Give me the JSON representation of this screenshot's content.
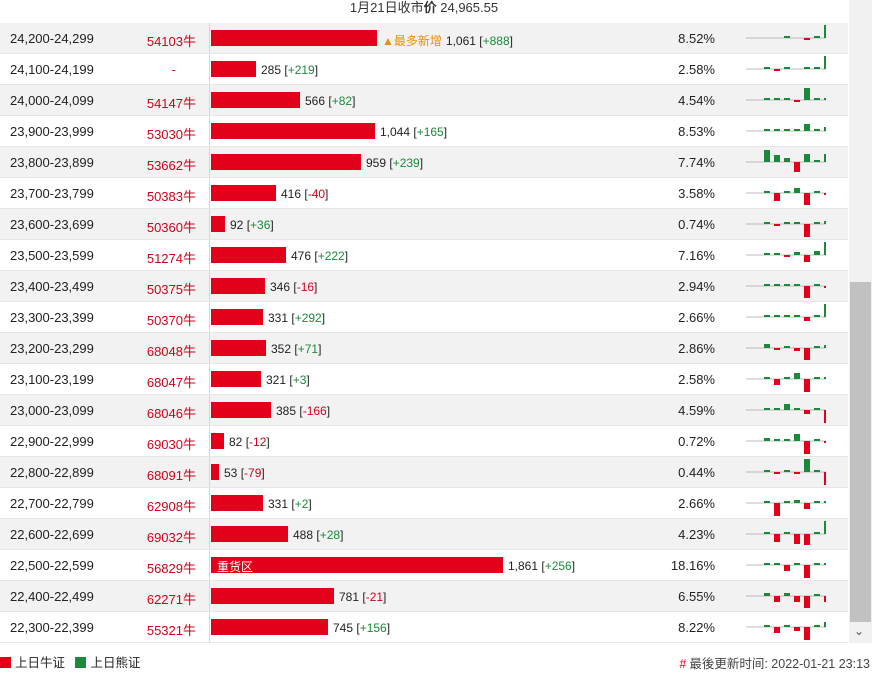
{
  "header": {
    "prefix": "1月21日收市",
    "label": "价",
    "price": "24,965.55"
  },
  "colors": {
    "bull": "#e2001a",
    "bear": "#1a8a3a",
    "accent": "#e8900c"
  },
  "columns": [
    "price_range",
    "code",
    "volume",
    "change",
    "percent",
    "trend"
  ],
  "scale_max": 1861,
  "rows": [
    {
      "range": "24,200-24,299",
      "code": "54103牛",
      "value": 1061,
      "value_text": "1,061",
      "change": "+888",
      "tag": "▲最多新增",
      "pct": "8.52%",
      "trend": [
        0,
        0,
        0,
        0.05,
        0,
        -0.05,
        0.15,
        0.95
      ]
    },
    {
      "range": "24,100-24,199",
      "code": "-",
      "value": 285,
      "value_text": "285",
      "change": "+219",
      "pct": "2.58%",
      "trend": [
        0,
        0.1,
        -0.05,
        0.05,
        0,
        0.1,
        0.15,
        0.95
      ]
    },
    {
      "range": "24,000-24,099",
      "code": "54147牛",
      "value": 566,
      "value_text": "566",
      "change": "+82",
      "pct": "4.54%",
      "trend": [
        0,
        0.05,
        0.05,
        0.05,
        -0.1,
        0.85,
        0.1,
        0.05
      ]
    },
    {
      "range": "23,900-23,999",
      "code": "53030牛",
      "value": 1044,
      "value_text": "1,044",
      "change": "+165",
      "pct": "8.53%",
      "trend": [
        0,
        0.1,
        0.05,
        0.05,
        0.1,
        0.5,
        0.1,
        0.3
      ]
    },
    {
      "range": "23,800-23,899",
      "code": "53662牛",
      "value": 959,
      "value_text": "959",
      "change": "+239",
      "pct": "7.74%",
      "trend": [
        0,
        0.85,
        0.5,
        0.3,
        -0.7,
        0.55,
        0.1,
        0.6
      ]
    },
    {
      "range": "23,700-23,799",
      "code": "50383牛",
      "value": 416,
      "value_text": "416",
      "change": "-40",
      "pct": "3.58%",
      "trend": [
        0,
        0.15,
        -0.55,
        0.05,
        0.35,
        -0.85,
        0.05,
        -0.1
      ]
    },
    {
      "range": "23,600-23,699",
      "code": "50360牛",
      "value": 92,
      "value_text": "92",
      "change": "+36",
      "pct": "0.74%",
      "trend": [
        0,
        0.1,
        -0.05,
        0.05,
        0.1,
        -0.9,
        0.05,
        0.2
      ]
    },
    {
      "range": "23,500-23,599",
      "code": "51274牛",
      "value": 476,
      "value_text": "476",
      "change": "+222",
      "pct": "7.16%",
      "trend": [
        0,
        0.1,
        0.1,
        -0.05,
        0.2,
        -0.5,
        0.3,
        0.9
      ]
    },
    {
      "range": "23,400-23,499",
      "code": "50375牛",
      "value": 346,
      "value_text": "346",
      "change": "-16",
      "pct": "2.94%",
      "trend": [
        0,
        0.05,
        0.1,
        0.05,
        0.1,
        -0.85,
        0.05,
        -0.1
      ]
    },
    {
      "range": "23,300-23,399",
      "code": "50370牛",
      "value": 331,
      "value_text": "331",
      "change": "+292",
      "pct": "2.66%",
      "trend": [
        0,
        0.05,
        0.1,
        0.05,
        0.1,
        -0.3,
        0.1,
        0.95
      ]
    },
    {
      "range": "23,200-23,299",
      "code": "68048牛",
      "value": 352,
      "value_text": "352",
      "change": "+71",
      "pct": "2.86%",
      "trend": [
        0,
        0.3,
        -0.05,
        0.1,
        -0.2,
        -0.85,
        0.05,
        0.2
      ]
    },
    {
      "range": "23,100-23,199",
      "code": "68047牛",
      "value": 321,
      "value_text": "321",
      "change": "+3",
      "pct": "2.58%",
      "trend": [
        0,
        0.05,
        -0.45,
        0.05,
        0.4,
        -0.9,
        0.1,
        0.05
      ]
    },
    {
      "range": "23,000-23,099",
      "code": "68046牛",
      "value": 385,
      "value_text": "385",
      "change": "-166",
      "pct": "4.59%",
      "trend": [
        0,
        0.05,
        0.05,
        0.4,
        0.1,
        -0.3,
        0.05,
        -0.95
      ]
    },
    {
      "range": "22,900-22,999",
      "code": "69030牛",
      "value": 82,
      "value_text": "82",
      "change": "-12",
      "pct": "0.72%",
      "trend": [
        0,
        0.2,
        0.05,
        0.1,
        0.5,
        -0.9,
        0.05,
        -0.1
      ]
    },
    {
      "range": "22,800-22,899",
      "code": "68091牛",
      "value": 53,
      "value_text": "53",
      "change": "-79",
      "pct": "0.44%",
      "trend": [
        0,
        0.05,
        -0.05,
        0.05,
        -0.05,
        0.95,
        0.05,
        -0.95
      ]
    },
    {
      "range": "22,700-22,799",
      "code": "62908牛",
      "value": 331,
      "value_text": "331",
      "change": "+2",
      "pct": "2.66%",
      "trend": [
        0,
        0.05,
        -0.95,
        0.05,
        0.2,
        -0.4,
        0.05,
        0.05
      ]
    },
    {
      "range": "22,600-22,699",
      "code": "69032牛",
      "value": 488,
      "value_text": "488",
      "change": "+28",
      "pct": "4.23%",
      "trend": [
        0,
        0.1,
        -0.6,
        0.15,
        -0.7,
        -0.75,
        0.1,
        0.95
      ]
    },
    {
      "range": "22,500-22,599",
      "code": "56829牛",
      "value": 1861,
      "value_text": "1,861",
      "change": "+256",
      "bar_label": "重货区",
      "pct": "18.16%",
      "trend": [
        0,
        0.05,
        0.1,
        -0.4,
        0.1,
        -0.95,
        0.1,
        0.1
      ]
    },
    {
      "range": "22,400-22,499",
      "code": "62271牛",
      "value": 781,
      "value_text": "781",
      "change": "-21",
      "pct": "6.55%",
      "trend": [
        0,
        0.2,
        -0.45,
        0.2,
        -0.4,
        -0.85,
        0.1,
        -0.4
      ]
    },
    {
      "range": "22,300-22,399",
      "code": "55321牛",
      "value": 745,
      "value_text": "745",
      "change": "+156",
      "pct": "8.22%",
      "trend": [
        0,
        0.1,
        -0.4,
        0.1,
        -0.3,
        -0.95,
        0.1,
        0.35
      ]
    }
  ],
  "legend": [
    {
      "label": "上日牛证",
      "color": "#e2001a"
    },
    {
      "label": "上日熊证",
      "color": "#1a8a3a"
    }
  ],
  "update": {
    "label": "最後更新时间:",
    "time": "2022-01-21 23:13"
  }
}
